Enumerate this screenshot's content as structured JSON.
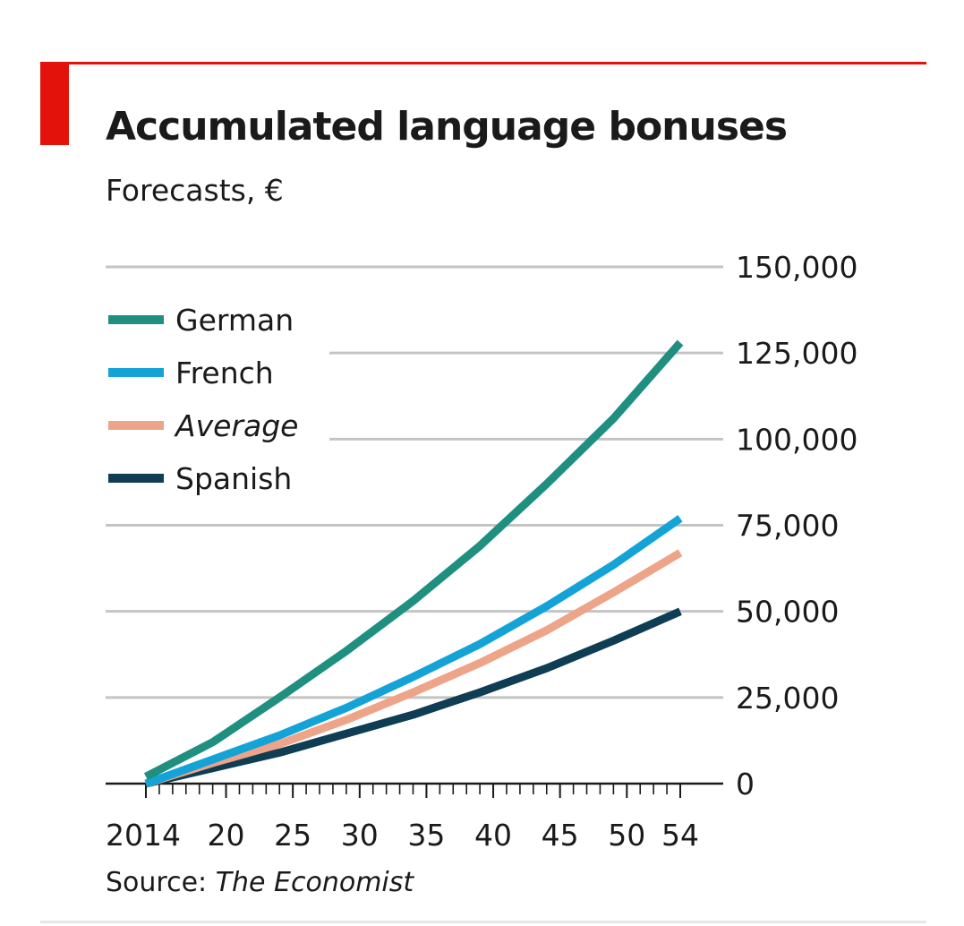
{
  "header": {
    "title": "Accumulated language bonuses",
    "subtitle": "Forecasts, €"
  },
  "footer": {
    "source_label": "Source:",
    "source_name": "The Economist"
  },
  "colors": {
    "accent": "#e3120b",
    "gridline": "#c4c4c4",
    "axis": "#1a1a1a",
    "text": "#1a1a1a"
  },
  "chart_data": {
    "type": "line",
    "title": "Accumulated language bonuses",
    "subtitle": "Forecasts, €",
    "xlabel": "",
    "ylabel": "",
    "xlim": [
      2014,
      2054
    ],
    "ylim": [
      0,
      150000
    ],
    "yticks": [
      0,
      25000,
      50000,
      75000,
      100000,
      125000,
      150000
    ],
    "ytick_labels": [
      "0",
      "25,000",
      "50,000",
      "75,000",
      "100,000",
      "125,000",
      "150,000"
    ],
    "xticks_labeled": [
      2014,
      2020,
      2025,
      2030,
      2035,
      2040,
      2045,
      2050,
      2054
    ],
    "xtick_labels": [
      "2014",
      "20",
      "25",
      "30",
      "35",
      "40",
      "45",
      "50",
      "54"
    ],
    "minor_xticks_every": 1,
    "grid": true,
    "y_axis_side": "right",
    "legend": "top-left",
    "series": [
      {
        "name": "German",
        "color": "#1f8f80",
        "italic": false,
        "x": [
          2014,
          2019,
          2024,
          2029,
          2034,
          2039,
          2044,
          2049,
          2054
        ],
        "values": [
          2000,
          12000,
          25000,
          38500,
          53000,
          69000,
          87000,
          106000,
          128000
        ]
      },
      {
        "name": "French",
        "color": "#14a3d7",
        "italic": false,
        "x": [
          2014,
          2019,
          2024,
          2029,
          2034,
          2039,
          2044,
          2049,
          2054
        ],
        "values": [
          0,
          7000,
          14000,
          22000,
          31000,
          40500,
          51500,
          63500,
          77000
        ]
      },
      {
        "name": "Average",
        "color": "#eda488",
        "italic": true,
        "x": [
          2014,
          2019,
          2024,
          2029,
          2034,
          2039,
          2044,
          2049,
          2054
        ],
        "values": [
          0,
          6000,
          11500,
          18500,
          26500,
          35000,
          44500,
          55500,
          67000
        ]
      },
      {
        "name": "Spanish",
        "color": "#0e3d54",
        "italic": false,
        "x": [
          2014,
          2019,
          2024,
          2029,
          2034,
          2039,
          2044,
          2049,
          2054
        ],
        "values": [
          0,
          4500,
          9000,
          14500,
          20000,
          26500,
          33500,
          41500,
          50000
        ]
      }
    ]
  }
}
